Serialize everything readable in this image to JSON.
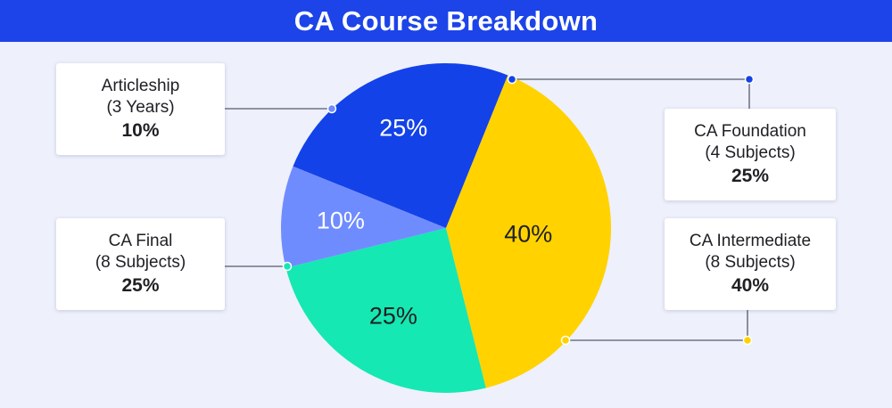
{
  "title": "CA Course Breakdown",
  "chart_data": {
    "type": "pie",
    "slices": [
      {
        "name": "CA Foundation",
        "detail": "(4 Subjects)",
        "value": 25,
        "label": "25%",
        "color": "#1342e8",
        "text_color": "#ffffff"
      },
      {
        "name": "CA Intermediate",
        "detail": "(8 Subjects)",
        "value": 40,
        "label": "40%",
        "color": "#ffd200",
        "text_color": "#1f1f24"
      },
      {
        "name": "CA Final",
        "detail": "(8 Subjects)",
        "value": 25,
        "label": "25%",
        "color": "#15e8b2",
        "text_color": "#1f1f24"
      },
      {
        "name": "Articleship",
        "detail": "(3 Years)",
        "value": 10,
        "label": "10%",
        "color": "#6f8cff",
        "text_color": "#ffffff"
      }
    ]
  },
  "colors": {
    "title_bar": "#1c44e8",
    "background": "#eef0fb",
    "connector": "#555b6e"
  }
}
